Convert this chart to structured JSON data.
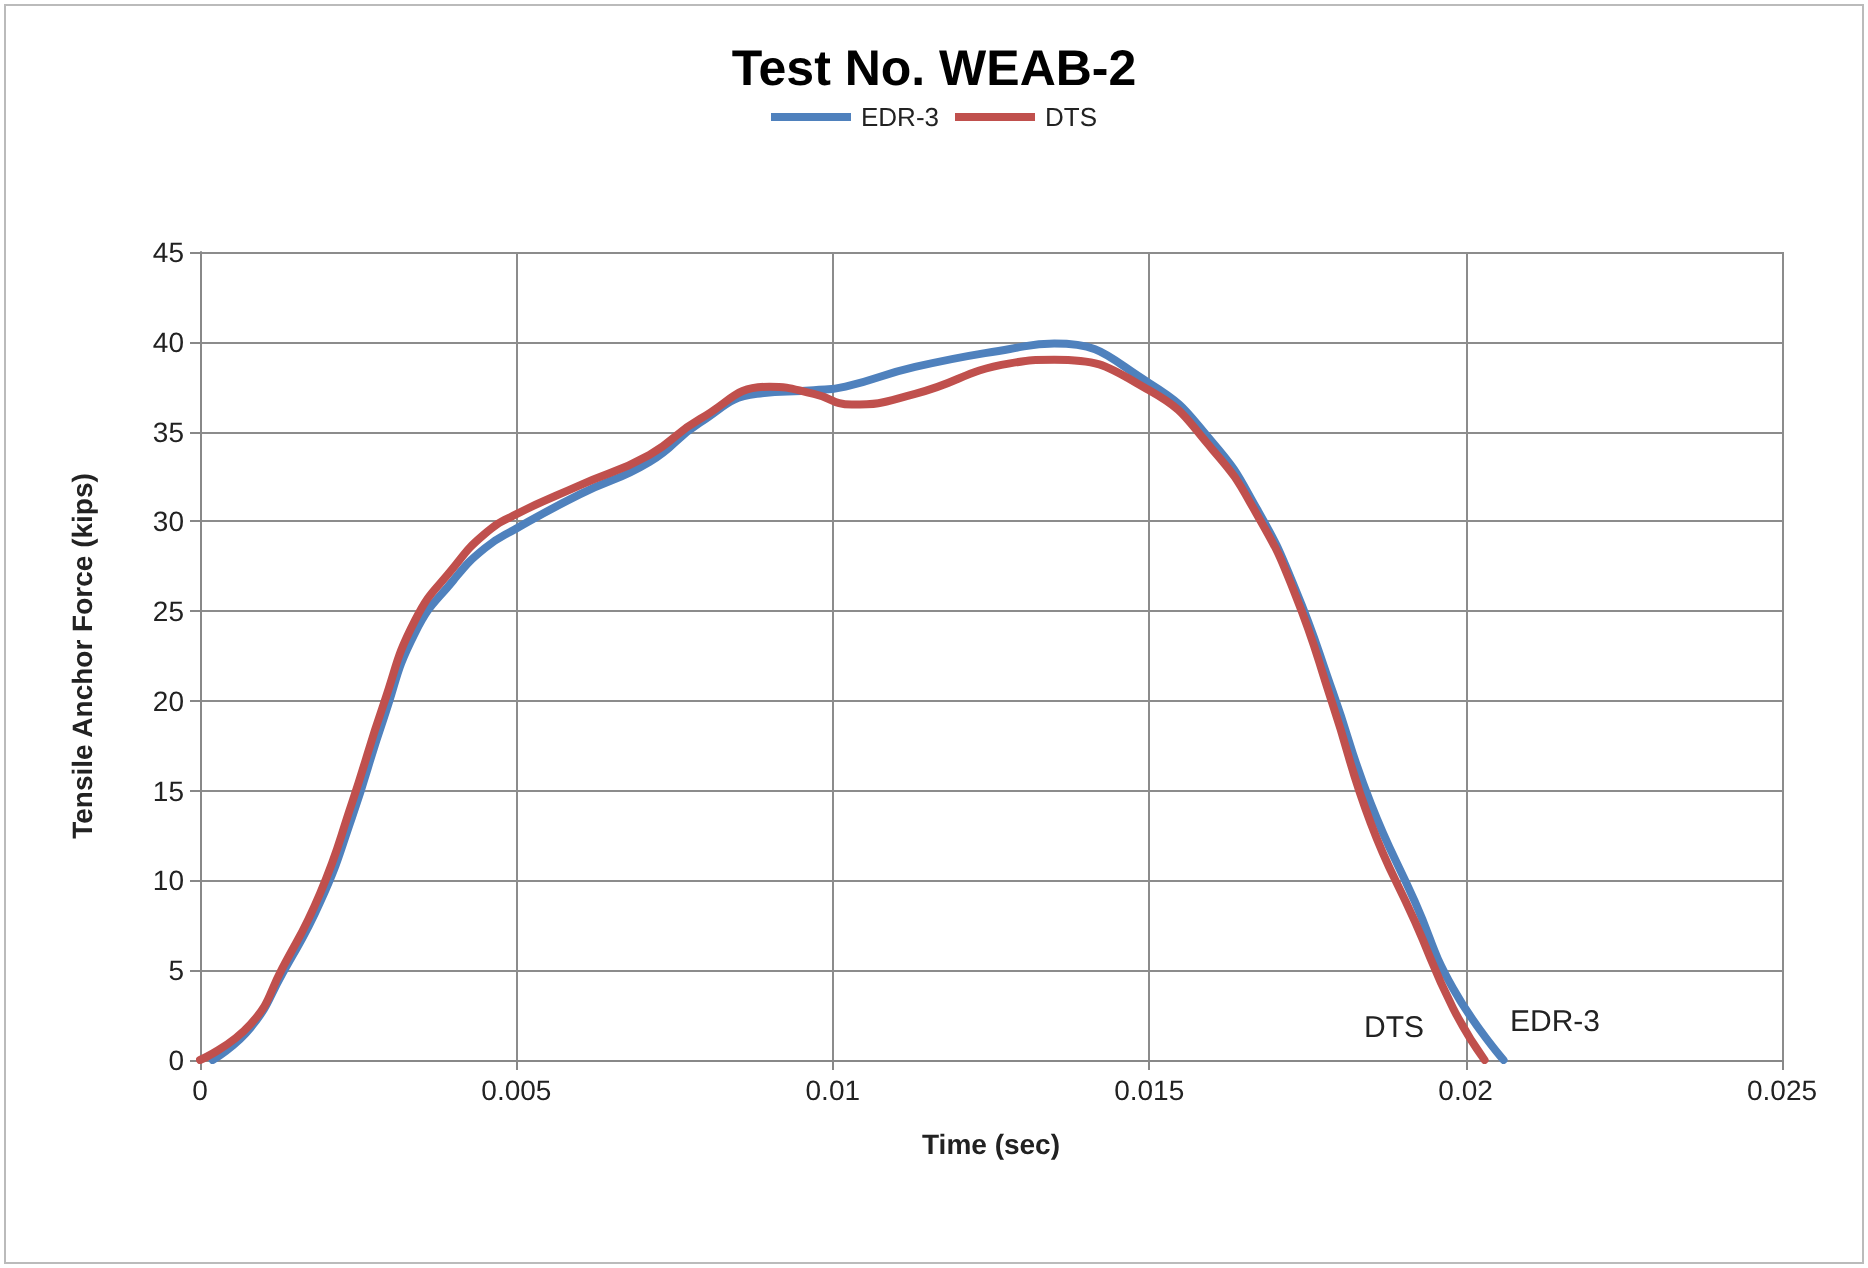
{
  "chart_data": {
    "type": "line",
    "title": "Test No. WEAB-2",
    "xlabel": "Time (sec)",
    "ylabel": "Tensile Anchor Force (kips)",
    "xlim": [
      0,
      0.025
    ],
    "xticks": [
      0,
      0.005,
      0.01,
      0.015,
      0.02,
      0.025
    ],
    "ylim": [
      0,
      45
    ],
    "yticks": [
      0,
      5,
      10,
      15,
      20,
      25,
      30,
      35,
      40,
      45
    ],
    "grid": true,
    "legend": "top",
    "marker": "none",
    "line_style": "solid",
    "annotations": [
      "DTS",
      "EDR-3"
    ],
    "series": [
      {
        "name": "EDR-3",
        "color": "#4f81bd",
        "x": [
          0.0002,
          0.0008,
          0.0013,
          0.0019,
          0.0024,
          0.0029,
          0.0034,
          0.004,
          0.0045,
          0.005,
          0.006,
          0.0071,
          0.0079,
          0.0088,
          0.0097,
          0.0102,
          0.0113,
          0.0128,
          0.0135,
          0.015,
          0.016,
          0.0167,
          0.0173,
          0.0179,
          0.0185,
          0.0192,
          0.0198,
          0.0206
        ],
        "values": [
          0,
          1.8,
          4.8,
          8.8,
          13.5,
          19,
          23.8,
          26.7,
          28.5,
          29.6,
          31.5,
          33.3,
          35.5,
          37.1,
          37.3,
          37.5,
          38.6,
          39.6,
          39.9,
          37.7,
          34.4,
          30.7,
          26.3,
          20.5,
          14.3,
          8.8,
          4,
          0
        ]
      },
      {
        "name": "DTS",
        "color": "#c0504d",
        "x": [
          0,
          0.0008,
          0.0013,
          0.0019,
          0.0024,
          0.0029,
          0.0034,
          0.004,
          0.0045,
          0.005,
          0.006,
          0.0071,
          0.0079,
          0.009,
          0.0097,
          0.0103,
          0.0113,
          0.0128,
          0.0135,
          0.015,
          0.016,
          0.0167,
          0.0173,
          0.0179,
          0.0185,
          0.0192,
          0.0198,
          0.0203
        ],
        "values": [
          0,
          2,
          5.1,
          9.3,
          14.3,
          19.8,
          24.5,
          27.4,
          29.3,
          30.4,
          32,
          33.7,
          35.7,
          37.5,
          37.1,
          36.5,
          37.1,
          38.8,
          39,
          37.3,
          34,
          30.4,
          26,
          19.8,
          13.2,
          7.7,
          2.9,
          0
        ]
      }
    ]
  }
}
